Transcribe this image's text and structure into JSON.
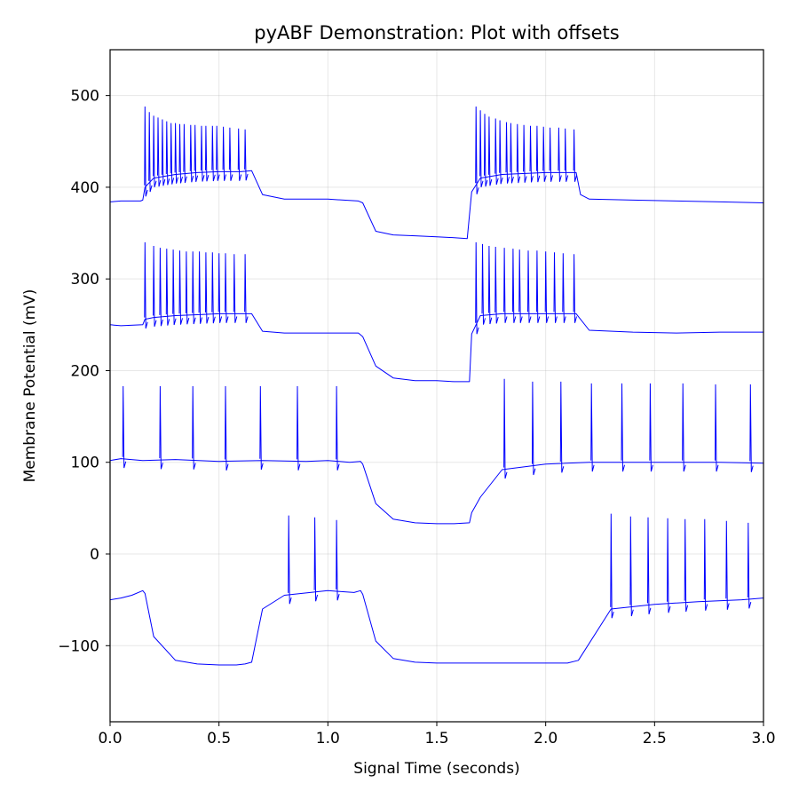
{
  "chart_data": {
    "type": "line",
    "title": "pyABF Demonstration: Plot with offsets",
    "xlabel": "Signal Time (seconds)",
    "ylabel": "Membrane Potential (mV)",
    "xlim": [
      0,
      3
    ],
    "ylim": [
      -183,
      550
    ],
    "xticks": [
      0,
      0.5,
      1,
      1.5,
      2,
      2.5,
      3
    ],
    "xtick_labels": [
      "0.0",
      "0.5",
      "1.0",
      "1.5",
      "2.0",
      "2.5",
      "3.0"
    ],
    "yticks": [
      -100,
      0,
      100,
      200,
      300,
      400,
      500
    ],
    "ytick_labels": [
      "−100",
      "0",
      "100",
      "200",
      "300",
      "400",
      "500"
    ],
    "grid": true,
    "line_color": "#0000ff",
    "series": [
      {
        "x": [
          0.0,
          0.05,
          0.1,
          0.15,
          0.16,
          0.2,
          0.3,
          0.4,
          0.5,
          0.58,
          0.62,
          0.65,
          0.7,
          0.8,
          1.0,
          1.12,
          1.15,
          1.16,
          1.22,
          1.3,
          1.4,
          1.5,
          1.58,
          1.65,
          1.7,
          1.75,
          1.85,
          2.0,
          2.1,
          2.15,
          2.3,
          2.5,
          2.7,
          2.9,
          3.0
        ],
        "y": [
          -50,
          -48,
          -45,
          -40,
          -43,
          -90,
          -116,
          -120,
          -121,
          -121,
          -120,
          -118,
          -60,
          -45,
          -40,
          -42,
          -40,
          -44,
          -95,
          -114,
          -118,
          -119,
          -119,
          -119,
          -119,
          -119,
          -119,
          -119,
          -119,
          -116,
          -60,
          -55,
          -52,
          -50,
          -48
        ],
        "spikes": [
          [
            0.82,
            42
          ],
          [
            0.94,
            40
          ],
          [
            1.04,
            37
          ],
          [
            2.3,
            44
          ],
          [
            2.39,
            41
          ],
          [
            2.47,
            40
          ],
          [
            2.56,
            39
          ],
          [
            2.64,
            38
          ],
          [
            2.73,
            38
          ],
          [
            2.83,
            36
          ],
          [
            2.93,
            34
          ]
        ]
      },
      {
        "x": [
          0.0,
          0.05,
          0.15,
          0.3,
          0.5,
          0.7,
          0.9,
          1.0,
          1.1,
          1.15,
          1.16,
          1.22,
          1.3,
          1.4,
          1.5,
          1.58,
          1.65,
          1.66,
          1.7,
          1.8,
          2.0,
          2.2,
          2.4,
          2.6,
          2.8,
          3.0
        ],
        "y": [
          102,
          104,
          102,
          103,
          101,
          102,
          101,
          102,
          100,
          101,
          98,
          55,
          38,
          34,
          33,
          33,
          34,
          45,
          62,
          92,
          98,
          100,
          100,
          100,
          100,
          99
        ],
        "spikes": [
          [
            0.06,
            183
          ],
          [
            0.23,
            183
          ],
          [
            0.38,
            183
          ],
          [
            0.53,
            183
          ],
          [
            0.69,
            183
          ],
          [
            0.86,
            183
          ],
          [
            1.04,
            183
          ],
          [
            1.81,
            191
          ],
          [
            1.94,
            188
          ],
          [
            2.07,
            188
          ],
          [
            2.21,
            186
          ],
          [
            2.35,
            186
          ],
          [
            2.48,
            186
          ],
          [
            2.63,
            186
          ],
          [
            2.78,
            185
          ],
          [
            2.94,
            185
          ]
        ]
      },
      {
        "x": [
          0.0,
          0.05,
          0.15,
          0.16,
          0.2,
          0.3,
          0.4,
          0.5,
          0.6,
          0.65,
          0.7,
          0.8,
          1.0,
          1.14,
          1.16,
          1.22,
          1.3,
          1.4,
          1.5,
          1.58,
          1.65,
          1.66,
          1.7,
          1.8,
          2.0,
          2.14,
          2.2,
          2.4,
          2.6,
          2.8,
          3.0
        ],
        "y": [
          250,
          249,
          250,
          256,
          258,
          260,
          261,
          262,
          262,
          262,
          243,
          241,
          241,
          241,
          237,
          205,
          192,
          189,
          189,
          188,
          188,
          240,
          260,
          262,
          262,
          262,
          244,
          242,
          241,
          242,
          242
        ],
        "spikes": [
          [
            0.16,
            340
          ],
          [
            0.2,
            336
          ],
          [
            0.23,
            334
          ],
          [
            0.26,
            333
          ],
          [
            0.29,
            332
          ],
          [
            0.32,
            331
          ],
          [
            0.35,
            330
          ],
          [
            0.38,
            330
          ],
          [
            0.41,
            330
          ],
          [
            0.44,
            329
          ],
          [
            0.47,
            329
          ],
          [
            0.5,
            328
          ],
          [
            0.53,
            328
          ],
          [
            0.57,
            327
          ],
          [
            0.62,
            327
          ],
          [
            1.68,
            340
          ],
          [
            1.71,
            338
          ],
          [
            1.74,
            336
          ],
          [
            1.77,
            335
          ],
          [
            1.81,
            334
          ],
          [
            1.85,
            333
          ],
          [
            1.88,
            332
          ],
          [
            1.92,
            331
          ],
          [
            1.96,
            331
          ],
          [
            2.0,
            330
          ],
          [
            2.04,
            329
          ],
          [
            2.08,
            328
          ],
          [
            2.13,
            327
          ]
        ]
      },
      {
        "x": [
          0.0,
          0.05,
          0.14,
          0.15,
          0.16,
          0.2,
          0.3,
          0.4,
          0.5,
          0.6,
          0.65,
          0.7,
          0.8,
          1.0,
          1.14,
          1.16,
          1.22,
          1.3,
          1.4,
          1.5,
          1.58,
          1.64,
          1.66,
          1.7,
          1.8,
          2.0,
          2.14,
          2.16,
          2.2,
          2.4,
          2.6,
          2.8,
          3.0
        ],
        "y": [
          384,
          385,
          385,
          386,
          400,
          410,
          414,
          416,
          417,
          417,
          418,
          392,
          387,
          387,
          385,
          383,
          352,
          348,
          347,
          346,
          345,
          344,
          395,
          410,
          414,
          416,
          416,
          392,
          387,
          386,
          385,
          384,
          383
        ],
        "spikes": [
          [
            0.16,
            488
          ],
          [
            0.18,
            482
          ],
          [
            0.2,
            478
          ],
          [
            0.22,
            476
          ],
          [
            0.24,
            474
          ],
          [
            0.26,
            472
          ],
          [
            0.28,
            470
          ],
          [
            0.3,
            470
          ],
          [
            0.32,
            469
          ],
          [
            0.34,
            469
          ],
          [
            0.37,
            468
          ],
          [
            0.39,
            468
          ],
          [
            0.42,
            467
          ],
          [
            0.44,
            467
          ],
          [
            0.47,
            467
          ],
          [
            0.49,
            467
          ],
          [
            0.52,
            466
          ],
          [
            0.55,
            465
          ],
          [
            0.59,
            464
          ],
          [
            0.62,
            463
          ],
          [
            1.68,
            488
          ],
          [
            1.7,
            484
          ],
          [
            1.72,
            480
          ],
          [
            1.74,
            477
          ],
          [
            1.77,
            475
          ],
          [
            1.79,
            473
          ],
          [
            1.82,
            471
          ],
          [
            1.84,
            470
          ],
          [
            1.87,
            469
          ],
          [
            1.9,
            468
          ],
          [
            1.93,
            467
          ],
          [
            1.96,
            467
          ],
          [
            1.99,
            466
          ],
          [
            2.02,
            465
          ],
          [
            2.06,
            465
          ],
          [
            2.09,
            464
          ],
          [
            2.13,
            463
          ]
        ]
      }
    ]
  }
}
